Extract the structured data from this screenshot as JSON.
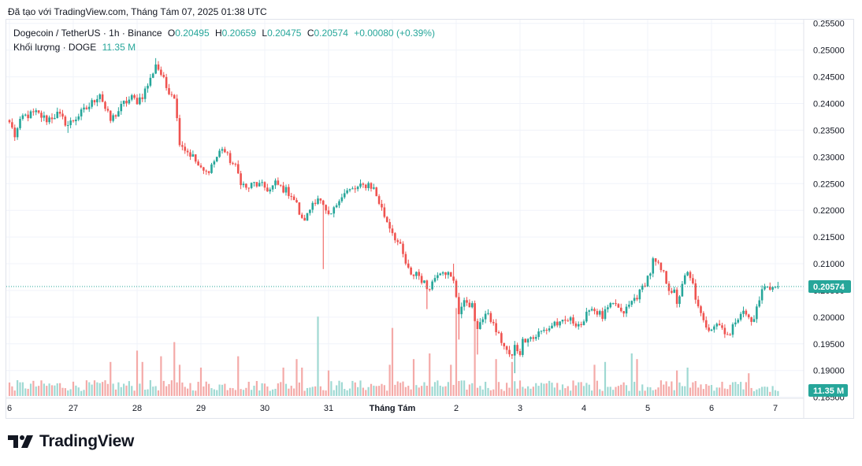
{
  "header": {
    "text": "Đã tạo với TradingView.com, Tháng Tám 07, 2025 01:38 UTC"
  },
  "legend": {
    "symbol": "Dogecoin / TetherUS · 1h · Binance",
    "open_label": "O",
    "open": "0.20495",
    "high_label": "H",
    "high": "0.20659",
    "low_label": "L",
    "low": "0.20475",
    "close_label": "C",
    "close": "0.20574",
    "change": "+0.00080 (+0.39%)",
    "volume_label": "Khối lượng · DOGE",
    "volume": "11.35 M"
  },
  "brand": {
    "name": "TradingView"
  },
  "colors": {
    "up": "#26a69a",
    "down": "#ef5350",
    "up_volume": "#9fd9d3",
    "down_volume": "#f4aaa8",
    "grid": "#f0f3fa",
    "last_price": "#26a69a"
  },
  "chart_data": {
    "type": "candlestick",
    "interval": "1h",
    "y_axis": {
      "ticks": [
        "0.25500",
        "0.25000",
        "0.24500",
        "0.24000",
        "0.23500",
        "0.23000",
        "0.22500",
        "0.22000",
        "0.21500",
        "0.21000",
        "0.20500",
        "0.20000",
        "0.19500",
        "0.19000",
        "0.18500"
      ],
      "ylim": [
        0.1848,
        0.2557
      ],
      "position": "right"
    },
    "x_axis": {
      "ticks": [
        {
          "label": "6",
          "hour": 0
        },
        {
          "label": "27",
          "hour": 24
        },
        {
          "label": "28",
          "hour": 48
        },
        {
          "label": "29",
          "hour": 72
        },
        {
          "label": "30",
          "hour": 96
        },
        {
          "label": "31",
          "hour": 120
        },
        {
          "label": "Tháng Tám",
          "hour": 144
        },
        {
          "label": "2",
          "hour": 168
        },
        {
          "label": "3",
          "hour": 192
        },
        {
          "label": "4",
          "hour": 216
        },
        {
          "label": "5",
          "hour": 240
        },
        {
          "label": "6",
          "hour": 264
        },
        {
          "label": "7",
          "hour": 288
        }
      ],
      "total_hours": 290
    },
    "price_anchors": [
      [
        0,
        0.2365
      ],
      [
        2,
        0.234
      ],
      [
        5,
        0.2375
      ],
      [
        10,
        0.2382
      ],
      [
        14,
        0.237
      ],
      [
        18,
        0.238
      ],
      [
        22,
        0.236
      ],
      [
        26,
        0.2378
      ],
      [
        30,
        0.2395
      ],
      [
        34,
        0.242
      ],
      [
        36,
        0.239
      ],
      [
        38,
        0.2368
      ],
      [
        40,
        0.238
      ],
      [
        43,
        0.24
      ],
      [
        46,
        0.241
      ],
      [
        48,
        0.2405
      ],
      [
        50,
        0.2415
      ],
      [
        53,
        0.2445
      ],
      [
        55,
        0.2475
      ],
      [
        57,
        0.2455
      ],
      [
        59,
        0.243
      ],
      [
        62,
        0.2415
      ],
      [
        63,
        0.237
      ],
      [
        64,
        0.233
      ],
      [
        66,
        0.2315
      ],
      [
        69,
        0.23
      ],
      [
        72,
        0.2275
      ],
      [
        74,
        0.227
      ],
      [
        76,
        0.2285
      ],
      [
        78,
        0.23
      ],
      [
        80,
        0.2318
      ],
      [
        82,
        0.23
      ],
      [
        85,
        0.228
      ],
      [
        87,
        0.2255
      ],
      [
        89,
        0.224
      ],
      [
        92,
        0.225
      ],
      [
        95,
        0.2245
      ],
      [
        98,
        0.2238
      ],
      [
        100,
        0.225
      ],
      [
        103,
        0.224
      ],
      [
        106,
        0.223
      ],
      [
        108,
        0.221
      ],
      [
        110,
        0.218
      ],
      [
        112,
        0.219
      ],
      [
        114,
        0.2215
      ],
      [
        116,
        0.2225
      ],
      [
        118,
        0.2205
      ],
      [
        120,
        0.2185
      ],
      [
        122,
        0.22
      ],
      [
        124,
        0.2225
      ],
      [
        127,
        0.2235
      ],
      [
        130,
        0.224
      ],
      [
        133,
        0.2245
      ],
      [
        135,
        0.225
      ],
      [
        137,
        0.224
      ],
      [
        139,
        0.2215
      ],
      [
        141,
        0.219
      ],
      [
        143,
        0.217
      ],
      [
        145,
        0.215
      ],
      [
        147,
        0.213
      ],
      [
        149,
        0.21
      ],
      [
        151,
        0.2075
      ],
      [
        153,
        0.2085
      ],
      [
        155,
        0.207
      ],
      [
        157,
        0.2055
      ],
      [
        159,
        0.2065
      ],
      [
        161,
        0.2085
      ],
      [
        163,
        0.209
      ],
      [
        165,
        0.208
      ],
      [
        167,
        0.2065
      ],
      [
        168,
        0.204
      ],
      [
        169,
        0.201
      ],
      [
        170,
        0.202
      ],
      [
        172,
        0.203
      ],
      [
        174,
        0.202
      ],
      [
        175,
        0.1995
      ],
      [
        176,
        0.197
      ],
      [
        177,
        0.1995
      ],
      [
        179,
        0.2005
      ],
      [
        181,
        0.1995
      ],
      [
        183,
        0.1975
      ],
      [
        185,
        0.1955
      ],
      [
        187,
        0.1935
      ],
      [
        189,
        0.1925
      ],
      [
        190,
        0.1945
      ],
      [
        192,
        0.1935
      ],
      [
        193,
        0.1955
      ],
      [
        195,
        0.1965
      ],
      [
        197,
        0.196
      ],
      [
        199,
        0.197
      ],
      [
        201,
        0.1975
      ],
      [
        203,
        0.198
      ],
      [
        205,
        0.199
      ],
      [
        207,
        0.1985
      ],
      [
        210,
        0.1995
      ],
      [
        213,
        0.199
      ],
      [
        216,
        0.1985
      ],
      [
        218,
        0.202
      ],
      [
        221,
        0.201
      ],
      [
        223,
        0.2
      ],
      [
        225,
        0.2015
      ],
      [
        228,
        0.2025
      ],
      [
        230,
        0.2005
      ],
      [
        232,
        0.2015
      ],
      [
        235,
        0.2035
      ],
      [
        237,
        0.2045
      ],
      [
        239,
        0.2065
      ],
      [
        241,
        0.2085
      ],
      [
        242,
        0.2105
      ],
      [
        244,
        0.2095
      ],
      [
        246,
        0.208
      ],
      [
        248,
        0.2055
      ],
      [
        250,
        0.2045
      ],
      [
        251,
        0.202
      ],
      [
        253,
        0.2065
      ],
      [
        255,
        0.208
      ],
      [
        257,
        0.206
      ],
      [
        259,
        0.2015
      ],
      [
        261,
        0.199
      ],
      [
        263,
        0.198
      ],
      [
        266,
        0.199
      ],
      [
        268,
        0.198
      ],
      [
        271,
        0.1965
      ],
      [
        273,
        0.1995
      ],
      [
        275,
        0.201
      ],
      [
        277,
        0.2005
      ],
      [
        279,
        0.199
      ],
      [
        281,
        0.2015
      ],
      [
        283,
        0.205
      ],
      [
        285,
        0.206
      ],
      [
        287,
        0.2055
      ],
      [
        289,
        0.2057
      ]
    ],
    "spikes": [
      {
        "hour": 2,
        "low": 0.233
      },
      {
        "hour": 22,
        "low": 0.2345
      },
      {
        "hour": 55,
        "high": 0.2485
      },
      {
        "hour": 118,
        "low": 0.209
      },
      {
        "hour": 157,
        "low": 0.2015
      },
      {
        "hour": 167,
        "high": 0.21
      },
      {
        "hour": 169,
        "low": 0.1958
      },
      {
        "hour": 176,
        "low": 0.193
      },
      {
        "hour": 190,
        "low": 0.1895
      },
      {
        "hour": 242,
        "high": 0.2113
      },
      {
        "hour": 289,
        "high": 0.2066
      }
    ],
    "volume": {
      "base": 3.5,
      "max": 31,
      "spikes": [
        {
          "hour": 38,
          "value": 12
        },
        {
          "hour": 48,
          "value": 16
        },
        {
          "hour": 50,
          "value": 12
        },
        {
          "hour": 57,
          "value": 14
        },
        {
          "hour": 62,
          "value": 19
        },
        {
          "hour": 64,
          "value": 11
        },
        {
          "hour": 72,
          "value": 10
        },
        {
          "hour": 86,
          "value": 14
        },
        {
          "hour": 103,
          "value": 10
        },
        {
          "hour": 108,
          "value": 13
        },
        {
          "hour": 110,
          "value": 10
        },
        {
          "hour": 116,
          "value": 28
        },
        {
          "hour": 120,
          "value": 9
        },
        {
          "hour": 143,
          "value": 11
        },
        {
          "hour": 144,
          "value": 24
        },
        {
          "hour": 152,
          "value": 13
        },
        {
          "hour": 158,
          "value": 15
        },
        {
          "hour": 166,
          "value": 11
        },
        {
          "hour": 168,
          "value": 31
        },
        {
          "hour": 175,
          "value": 31
        },
        {
          "hour": 183,
          "value": 13
        },
        {
          "hour": 189,
          "value": 12
        },
        {
          "hour": 220,
          "value": 11
        },
        {
          "hour": 224,
          "value": 12
        },
        {
          "hour": 234,
          "value": 15
        },
        {
          "hour": 236,
          "value": 13
        },
        {
          "hour": 251,
          "value": 9
        },
        {
          "hour": 255,
          "value": 10
        },
        {
          "hour": 278,
          "value": 8
        }
      ]
    },
    "last_price": {
      "value": 0.20574,
      "label": "0.20574"
    },
    "last_volume": {
      "label": "11.35 M"
    }
  }
}
